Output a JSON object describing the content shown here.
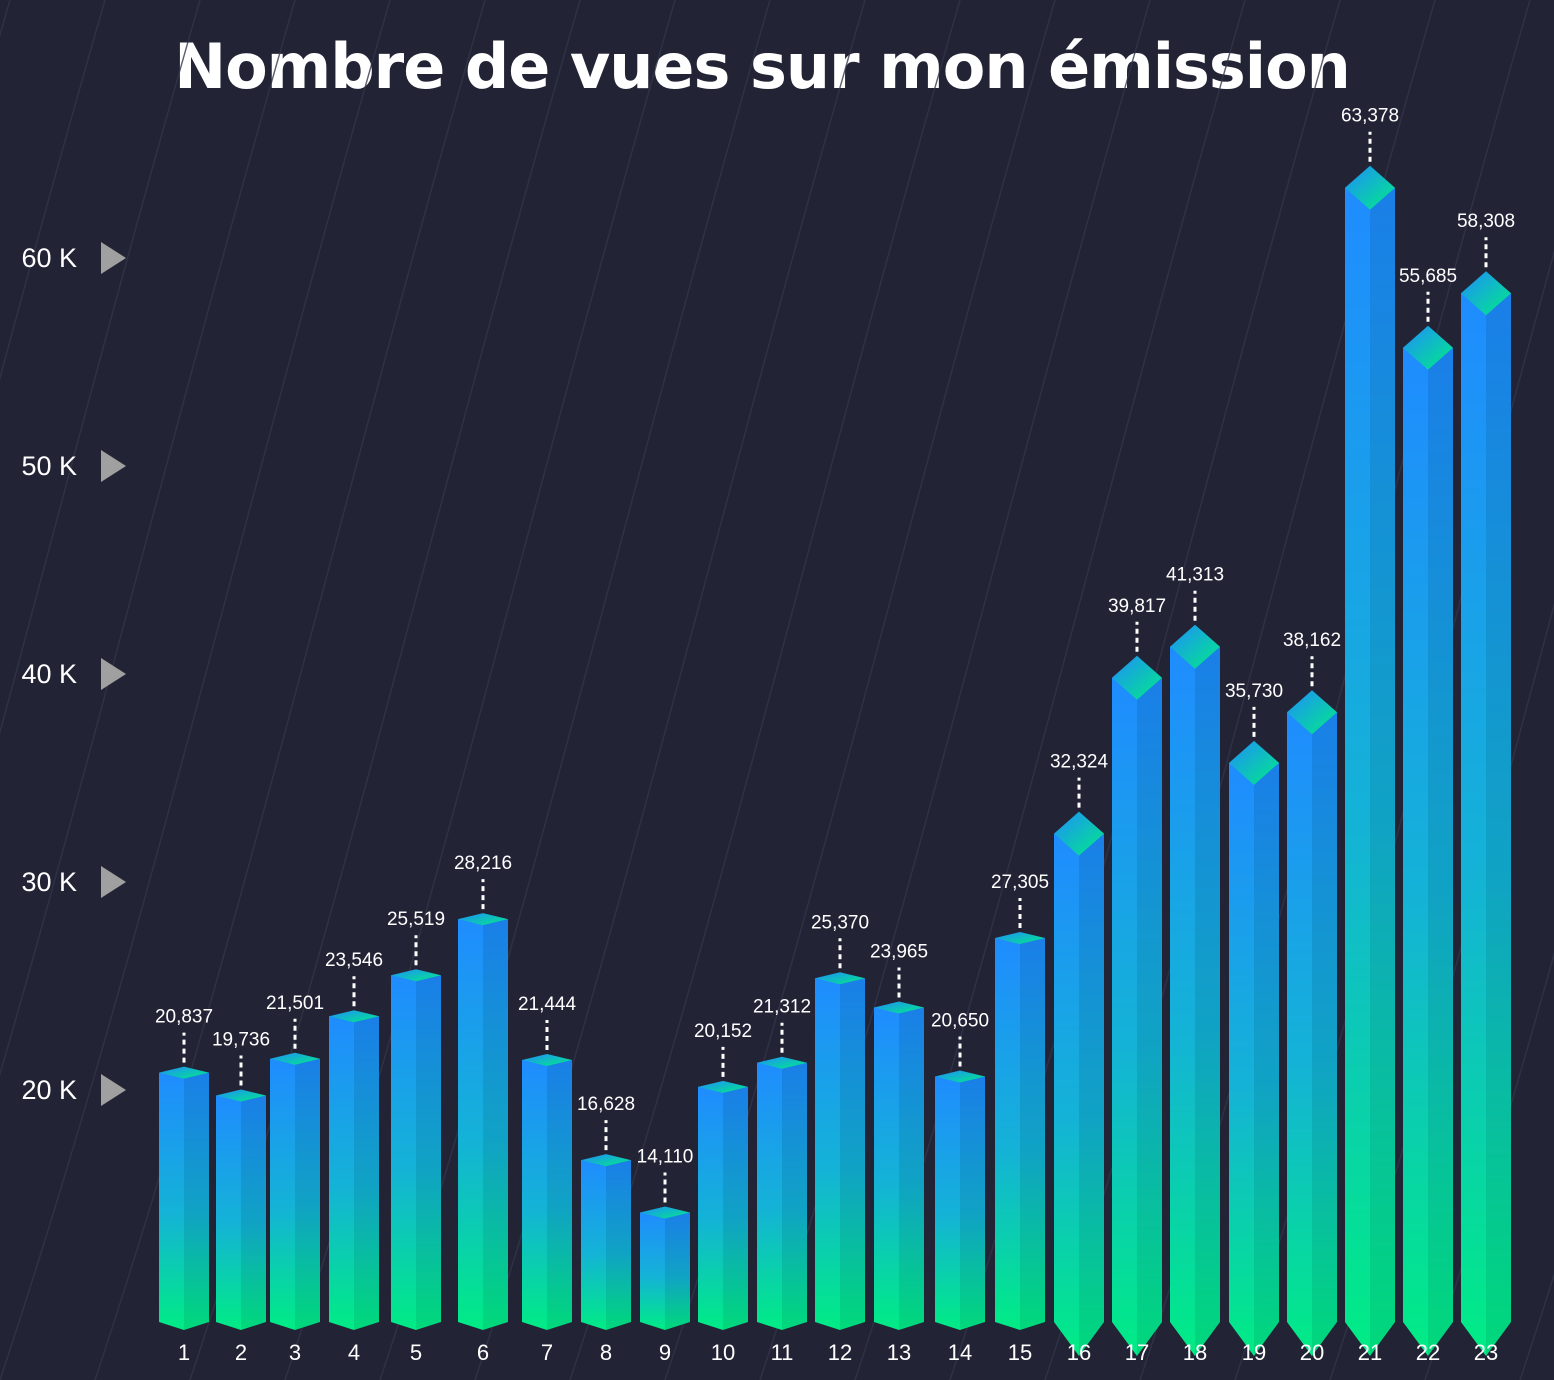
{
  "chart_data": {
    "type": "bar",
    "title": "Nombre de vues sur mon émission",
    "categories": [
      "1",
      "2",
      "3",
      "4",
      "5",
      "6",
      "7",
      "8",
      "9",
      "10",
      "11",
      "12",
      "13",
      "14",
      "15",
      "16",
      "17",
      "18",
      "19",
      "20",
      "21",
      "22",
      "23"
    ],
    "values": [
      20837,
      19736,
      21501,
      23546,
      25519,
      28216,
      21444,
      16628,
      14110,
      20152,
      21312,
      25370,
      23965,
      20650,
      27305,
      32324,
      39817,
      41313,
      35730,
      38162,
      63378,
      55685,
      58308
    ],
    "value_labels": [
      "20,837",
      "19,736",
      "21,501",
      "23,546",
      "25,519",
      "28,216",
      "21,444",
      "16,628",
      "14,110",
      "20,152",
      "21,312",
      "25,370",
      "23,965",
      "20,650",
      "27,305",
      "32,324",
      "39,817",
      "41,313",
      "35,730",
      "38,162",
      "63,378",
      "55,685",
      "58,308"
    ],
    "y_ticks": [
      20000,
      30000,
      40000,
      50000,
      60000
    ],
    "y_tick_labels": [
      "20 K",
      "30 K",
      "40 K",
      "50 K",
      "60 K"
    ],
    "xlabel": "",
    "ylabel": "",
    "grid": false,
    "legend": false,
    "colors": {
      "background": "#222436",
      "bar_top": "#1f8cff",
      "bar_bottom": "#00ec84",
      "text": "#ffffff",
      "tick_marker": "#a0a0a0",
      "background_lines": "#33364a"
    }
  }
}
